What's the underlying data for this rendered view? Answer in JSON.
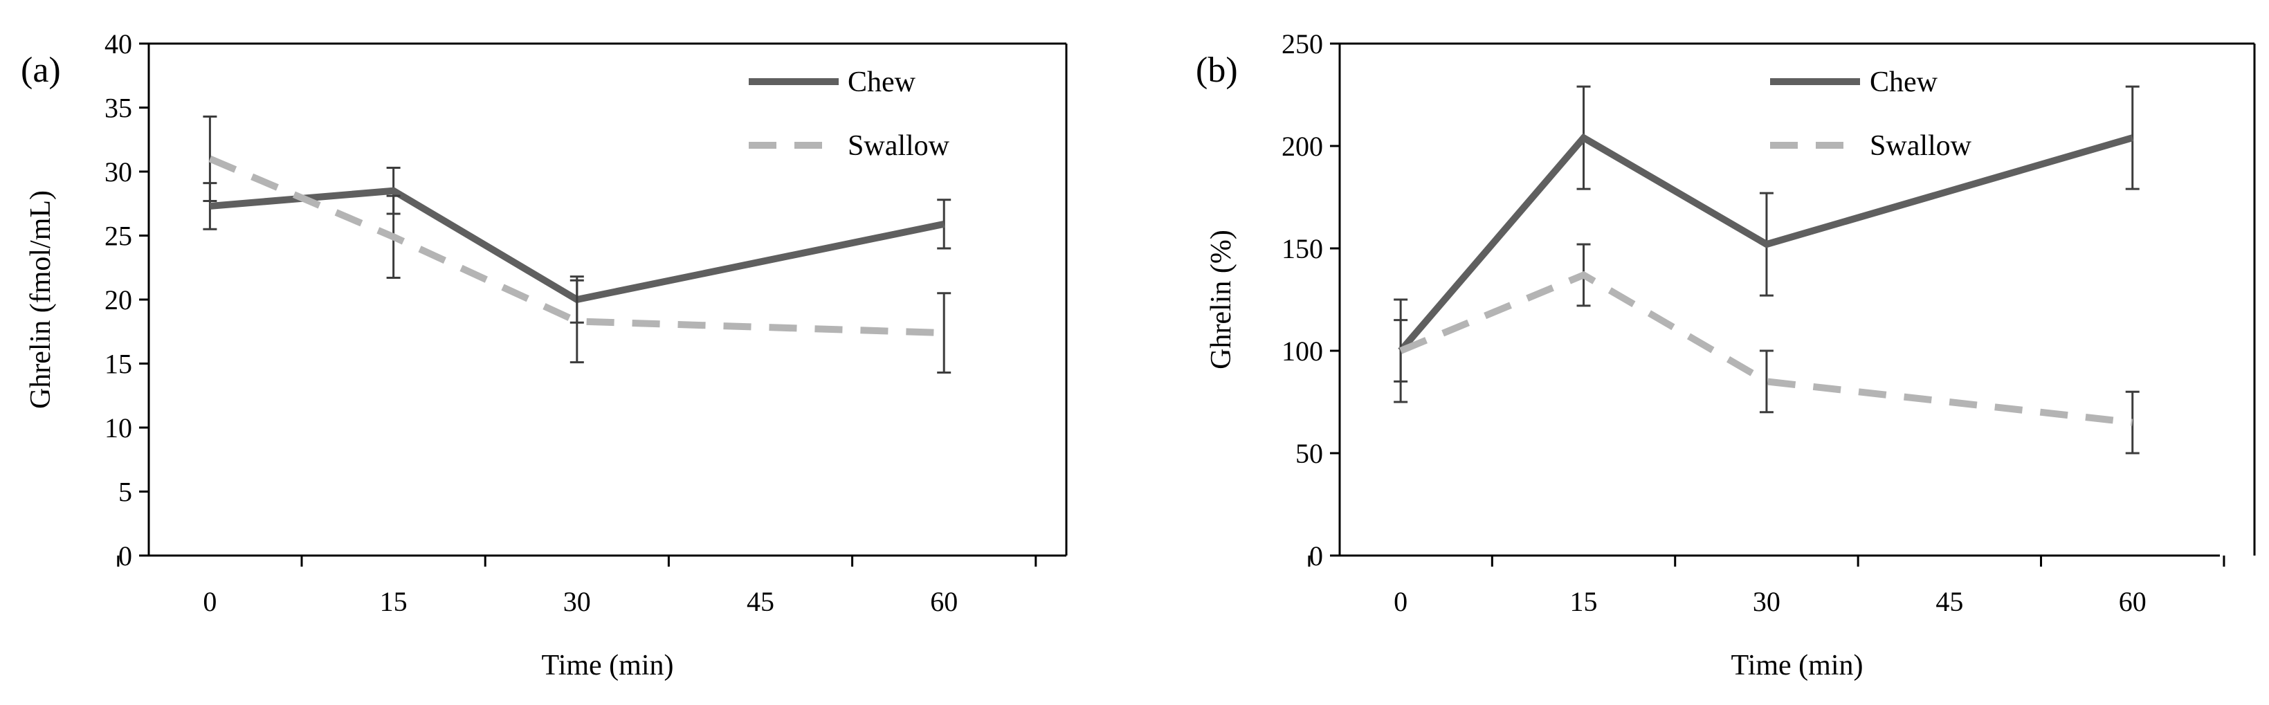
{
  "figure": {
    "colors": {
      "chew": "#5f5f5f",
      "swallow": "#b4b4b4",
      "axis": "#000000",
      "error_bar": "#3c3c3c"
    }
  },
  "chart_data": [
    {
      "panel_label": "(a)",
      "type": "line",
      "title": "",
      "xlabel": "Time (min)",
      "ylabel": "Ghrelin (fmol/mL)",
      "xlim": [
        -5,
        70
      ],
      "ylim": [
        0,
        40
      ],
      "xticks": [
        0,
        15,
        30,
        45,
        60
      ],
      "yticks": [
        0,
        5,
        10,
        15,
        20,
        25,
        30,
        35,
        40
      ],
      "grid": false,
      "legend_position": "top-right",
      "series": [
        {
          "name": "Chew",
          "style": "solid",
          "x": [
            0,
            15,
            30,
            60
          ],
          "y": [
            27.3,
            28.5,
            20.0,
            25.9
          ],
          "err": [
            1.8,
            1.8,
            1.8,
            1.9
          ]
        },
        {
          "name": "Swallow",
          "style": "dashed",
          "x": [
            0,
            15,
            30,
            60
          ],
          "y": [
            31.0,
            24.9,
            18.3,
            17.4
          ],
          "err": [
            3.3,
            3.2,
            3.2,
            3.1
          ]
        }
      ]
    },
    {
      "panel_label": "(b)",
      "type": "line",
      "title": "",
      "xlabel": "Time (min)",
      "ylabel": "Ghrelin (%)",
      "xlim": [
        -5,
        70
      ],
      "ylim": [
        0,
        250
      ],
      "xticks": [
        0,
        15,
        30,
        45,
        60
      ],
      "yticks": [
        0,
        50,
        100,
        150,
        200,
        250
      ],
      "grid": false,
      "legend_position": "top-right",
      "series": [
        {
          "name": "Chew",
          "style": "solid",
          "x": [
            0,
            15,
            30,
            60
          ],
          "y": [
            100,
            204,
            152,
            204
          ],
          "err": [
            25,
            25,
            25,
            25
          ]
        },
        {
          "name": "Swallow",
          "style": "dashed",
          "x": [
            0,
            15,
            30,
            60
          ],
          "y": [
            100,
            137,
            85,
            65
          ],
          "err": [
            15,
            15,
            15,
            15
          ]
        }
      ]
    }
  ]
}
